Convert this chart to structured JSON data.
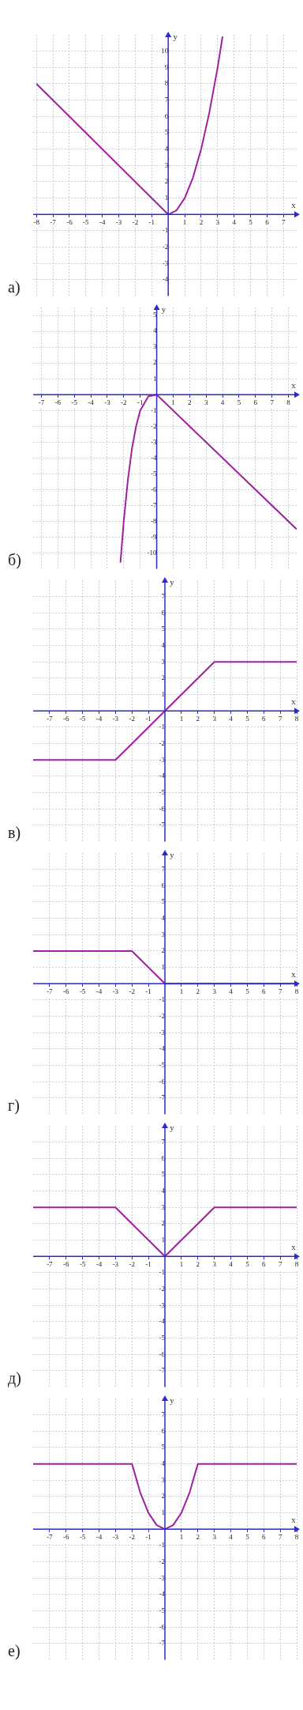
{
  "chart_data": [
    {
      "type": "line",
      "title": "а)",
      "xlabel": "x",
      "ylabel": "y",
      "color": "#a020a0",
      "grid": true,
      "x": [
        -8,
        0,
        0.5,
        1,
        1.5,
        2,
        2.5,
        3,
        3.3
      ],
      "values": [
        8,
        0,
        0.25,
        1,
        2.25,
        4,
        6.25,
        9,
        10.9
      ],
      "xlim": [
        -8.2,
        7.8
      ],
      "ylim": [
        -5,
        11
      ],
      "xticks": [
        -8,
        -7,
        -6,
        -5,
        -4,
        -3,
        -2,
        -1,
        1,
        2,
        3,
        4,
        5,
        6,
        7
      ],
      "yticks": [
        -4,
        -3,
        -2,
        -1,
        1,
        2,
        3,
        4,
        5,
        6,
        7,
        8,
        9,
        10
      ]
    },
    {
      "type": "line",
      "title": "б)",
      "xlabel": "x",
      "ylabel": "y",
      "color": "#a020a0",
      "grid": true,
      "x": [
        -2.2,
        -2,
        -1.75,
        -1.5,
        -1.25,
        -1,
        -0.5,
        0,
        8.5
      ],
      "values": [
        -10.6,
        -8,
        -5.4,
        -3.4,
        -2,
        -1,
        -0.1,
        0,
        -8.5
      ],
      "xlim": [
        -7.5,
        8.5
      ],
      "ylim": [
        -11,
        5.5
      ],
      "xticks": [
        -7,
        -6,
        -5,
        -4,
        -3,
        -2,
        -1,
        1,
        2,
        3,
        4,
        5,
        6,
        7,
        8
      ],
      "yticks": [
        -10,
        -9,
        -8,
        -7,
        -6,
        -5,
        -4,
        -3,
        -2,
        -1,
        1,
        2,
        3,
        4,
        5
      ]
    },
    {
      "type": "line",
      "title": "в)",
      "xlabel": "x",
      "ylabel": "y",
      "color": "#a020a0",
      "grid": true,
      "x": [
        -8,
        -3,
        3,
        8
      ],
      "values": [
        -3,
        -3,
        3,
        3
      ],
      "xlim": [
        -8,
        8
      ],
      "ylim": [
        -8,
        8
      ],
      "xticks": [
        -7,
        -6,
        -5,
        -4,
        -3,
        -2,
        -1,
        1,
        2,
        3,
        4,
        5,
        6,
        7,
        8
      ],
      "yticks": [
        -7,
        -6,
        -5,
        -4,
        -3,
        -2,
        -1,
        1,
        2,
        3,
        4,
        5,
        6,
        7
      ]
    },
    {
      "type": "line",
      "title": "г)",
      "xlabel": "x",
      "ylabel": "y",
      "color": "#a020a0",
      "grid": true,
      "x": [
        -8,
        -2,
        0,
        8
      ],
      "values": [
        2,
        2,
        0,
        0
      ],
      "xlim": [
        -8,
        8
      ],
      "ylim": [
        -8,
        8
      ],
      "xticks": [
        -7,
        -6,
        -5,
        -4,
        -3,
        -2,
        -1,
        1,
        2,
        3,
        4,
        5,
        6,
        7,
        8
      ],
      "yticks": [
        -7,
        -6,
        -5,
        -4,
        -3,
        -2,
        -1,
        1,
        2,
        3,
        4,
        5,
        6,
        7
      ]
    },
    {
      "type": "line",
      "title": "д)",
      "xlabel": "x",
      "ylabel": "y",
      "color": "#a020a0",
      "grid": true,
      "x": [
        -8,
        -3,
        0,
        3,
        8
      ],
      "values": [
        3,
        3,
        0,
        3,
        3
      ],
      "xlim": [
        -8,
        8
      ],
      "ylim": [
        -8,
        8
      ],
      "xticks": [
        -7,
        -6,
        -5,
        -4,
        -3,
        -2,
        -1,
        1,
        2,
        3,
        4,
        5,
        6,
        7,
        8
      ],
      "yticks": [
        -7,
        -6,
        -5,
        -4,
        -3,
        -2,
        -1,
        1,
        2,
        3,
        4,
        5,
        6,
        7
      ]
    },
    {
      "type": "line",
      "title": "е)",
      "xlabel": "x",
      "ylabel": "y",
      "color": "#a020a0",
      "grid": true,
      "x": [
        -8,
        -2,
        -1.5,
        -1,
        -0.5,
        0,
        0.5,
        1,
        1.5,
        2,
        8
      ],
      "values": [
        4,
        4,
        2.25,
        1,
        0.25,
        0,
        0.25,
        1,
        2.25,
        4,
        4
      ],
      "xlim": [
        -8,
        8
      ],
      "ylim": [
        -8,
        8
      ],
      "xticks": [
        -7,
        -6,
        -5,
        -4,
        -3,
        -2,
        -1,
        1,
        2,
        3,
        4,
        5,
        6,
        7,
        8
      ],
      "yticks": [
        -7,
        -6,
        -5,
        -4,
        -3,
        -2,
        -1,
        1,
        2,
        3,
        4,
        5,
        6,
        7
      ]
    }
  ]
}
